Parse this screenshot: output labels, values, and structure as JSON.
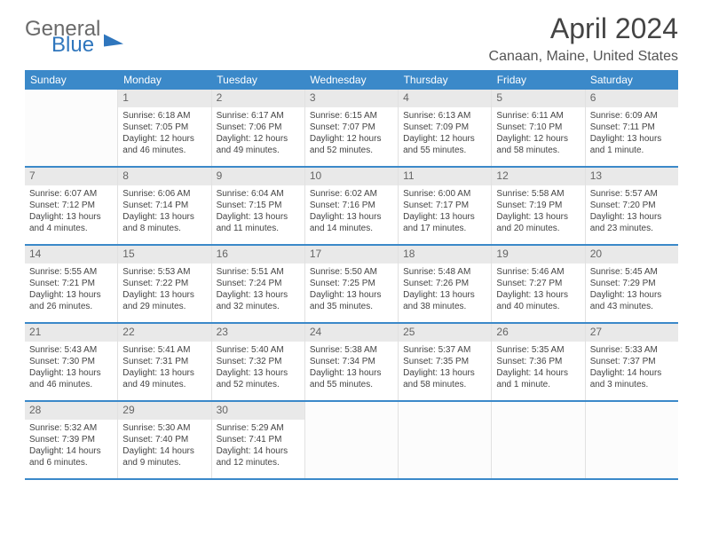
{
  "brand": {
    "general": "General",
    "blue": "Blue"
  },
  "title": "April 2024",
  "location": "Canaan, Maine, United States",
  "colors": {
    "header_bg": "#3b89c9",
    "header_text": "#ffffff",
    "daynum_bg": "#e9e9e9",
    "row_border": "#3b89c9",
    "cell_border": "#e1e1e1",
    "text": "#444444"
  },
  "day_headers": [
    "Sunday",
    "Monday",
    "Tuesday",
    "Wednesday",
    "Thursday",
    "Friday",
    "Saturday"
  ],
  "weeks": [
    [
      null,
      {
        "n": "1",
        "sunrise": "Sunrise: 6:18 AM",
        "sunset": "Sunset: 7:05 PM",
        "day1": "Daylight: 12 hours",
        "day2": "and 46 minutes."
      },
      {
        "n": "2",
        "sunrise": "Sunrise: 6:17 AM",
        "sunset": "Sunset: 7:06 PM",
        "day1": "Daylight: 12 hours",
        "day2": "and 49 minutes."
      },
      {
        "n": "3",
        "sunrise": "Sunrise: 6:15 AM",
        "sunset": "Sunset: 7:07 PM",
        "day1": "Daylight: 12 hours",
        "day2": "and 52 minutes."
      },
      {
        "n": "4",
        "sunrise": "Sunrise: 6:13 AM",
        "sunset": "Sunset: 7:09 PM",
        "day1": "Daylight: 12 hours",
        "day2": "and 55 minutes."
      },
      {
        "n": "5",
        "sunrise": "Sunrise: 6:11 AM",
        "sunset": "Sunset: 7:10 PM",
        "day1": "Daylight: 12 hours",
        "day2": "and 58 minutes."
      },
      {
        "n": "6",
        "sunrise": "Sunrise: 6:09 AM",
        "sunset": "Sunset: 7:11 PM",
        "day1": "Daylight: 13 hours",
        "day2": "and 1 minute."
      }
    ],
    [
      {
        "n": "7",
        "sunrise": "Sunrise: 6:07 AM",
        "sunset": "Sunset: 7:12 PM",
        "day1": "Daylight: 13 hours",
        "day2": "and 4 minutes."
      },
      {
        "n": "8",
        "sunrise": "Sunrise: 6:06 AM",
        "sunset": "Sunset: 7:14 PM",
        "day1": "Daylight: 13 hours",
        "day2": "and 8 minutes."
      },
      {
        "n": "9",
        "sunrise": "Sunrise: 6:04 AM",
        "sunset": "Sunset: 7:15 PM",
        "day1": "Daylight: 13 hours",
        "day2": "and 11 minutes."
      },
      {
        "n": "10",
        "sunrise": "Sunrise: 6:02 AM",
        "sunset": "Sunset: 7:16 PM",
        "day1": "Daylight: 13 hours",
        "day2": "and 14 minutes."
      },
      {
        "n": "11",
        "sunrise": "Sunrise: 6:00 AM",
        "sunset": "Sunset: 7:17 PM",
        "day1": "Daylight: 13 hours",
        "day2": "and 17 minutes."
      },
      {
        "n": "12",
        "sunrise": "Sunrise: 5:58 AM",
        "sunset": "Sunset: 7:19 PM",
        "day1": "Daylight: 13 hours",
        "day2": "and 20 minutes."
      },
      {
        "n": "13",
        "sunrise": "Sunrise: 5:57 AM",
        "sunset": "Sunset: 7:20 PM",
        "day1": "Daylight: 13 hours",
        "day2": "and 23 minutes."
      }
    ],
    [
      {
        "n": "14",
        "sunrise": "Sunrise: 5:55 AM",
        "sunset": "Sunset: 7:21 PM",
        "day1": "Daylight: 13 hours",
        "day2": "and 26 minutes."
      },
      {
        "n": "15",
        "sunrise": "Sunrise: 5:53 AM",
        "sunset": "Sunset: 7:22 PM",
        "day1": "Daylight: 13 hours",
        "day2": "and 29 minutes."
      },
      {
        "n": "16",
        "sunrise": "Sunrise: 5:51 AM",
        "sunset": "Sunset: 7:24 PM",
        "day1": "Daylight: 13 hours",
        "day2": "and 32 minutes."
      },
      {
        "n": "17",
        "sunrise": "Sunrise: 5:50 AM",
        "sunset": "Sunset: 7:25 PM",
        "day1": "Daylight: 13 hours",
        "day2": "and 35 minutes."
      },
      {
        "n": "18",
        "sunrise": "Sunrise: 5:48 AM",
        "sunset": "Sunset: 7:26 PM",
        "day1": "Daylight: 13 hours",
        "day2": "and 38 minutes."
      },
      {
        "n": "19",
        "sunrise": "Sunrise: 5:46 AM",
        "sunset": "Sunset: 7:27 PM",
        "day1": "Daylight: 13 hours",
        "day2": "and 40 minutes."
      },
      {
        "n": "20",
        "sunrise": "Sunrise: 5:45 AM",
        "sunset": "Sunset: 7:29 PM",
        "day1": "Daylight: 13 hours",
        "day2": "and 43 minutes."
      }
    ],
    [
      {
        "n": "21",
        "sunrise": "Sunrise: 5:43 AM",
        "sunset": "Sunset: 7:30 PM",
        "day1": "Daylight: 13 hours",
        "day2": "and 46 minutes."
      },
      {
        "n": "22",
        "sunrise": "Sunrise: 5:41 AM",
        "sunset": "Sunset: 7:31 PM",
        "day1": "Daylight: 13 hours",
        "day2": "and 49 minutes."
      },
      {
        "n": "23",
        "sunrise": "Sunrise: 5:40 AM",
        "sunset": "Sunset: 7:32 PM",
        "day1": "Daylight: 13 hours",
        "day2": "and 52 minutes."
      },
      {
        "n": "24",
        "sunrise": "Sunrise: 5:38 AM",
        "sunset": "Sunset: 7:34 PM",
        "day1": "Daylight: 13 hours",
        "day2": "and 55 minutes."
      },
      {
        "n": "25",
        "sunrise": "Sunrise: 5:37 AM",
        "sunset": "Sunset: 7:35 PM",
        "day1": "Daylight: 13 hours",
        "day2": "and 58 minutes."
      },
      {
        "n": "26",
        "sunrise": "Sunrise: 5:35 AM",
        "sunset": "Sunset: 7:36 PM",
        "day1": "Daylight: 14 hours",
        "day2": "and 1 minute."
      },
      {
        "n": "27",
        "sunrise": "Sunrise: 5:33 AM",
        "sunset": "Sunset: 7:37 PM",
        "day1": "Daylight: 14 hours",
        "day2": "and 3 minutes."
      }
    ],
    [
      {
        "n": "28",
        "sunrise": "Sunrise: 5:32 AM",
        "sunset": "Sunset: 7:39 PM",
        "day1": "Daylight: 14 hours",
        "day2": "and 6 minutes."
      },
      {
        "n": "29",
        "sunrise": "Sunrise: 5:30 AM",
        "sunset": "Sunset: 7:40 PM",
        "day1": "Daylight: 14 hours",
        "day2": "and 9 minutes."
      },
      {
        "n": "30",
        "sunrise": "Sunrise: 5:29 AM",
        "sunset": "Sunset: 7:41 PM",
        "day1": "Daylight: 14 hours",
        "day2": "and 12 minutes."
      },
      null,
      null,
      null,
      null
    ]
  ]
}
